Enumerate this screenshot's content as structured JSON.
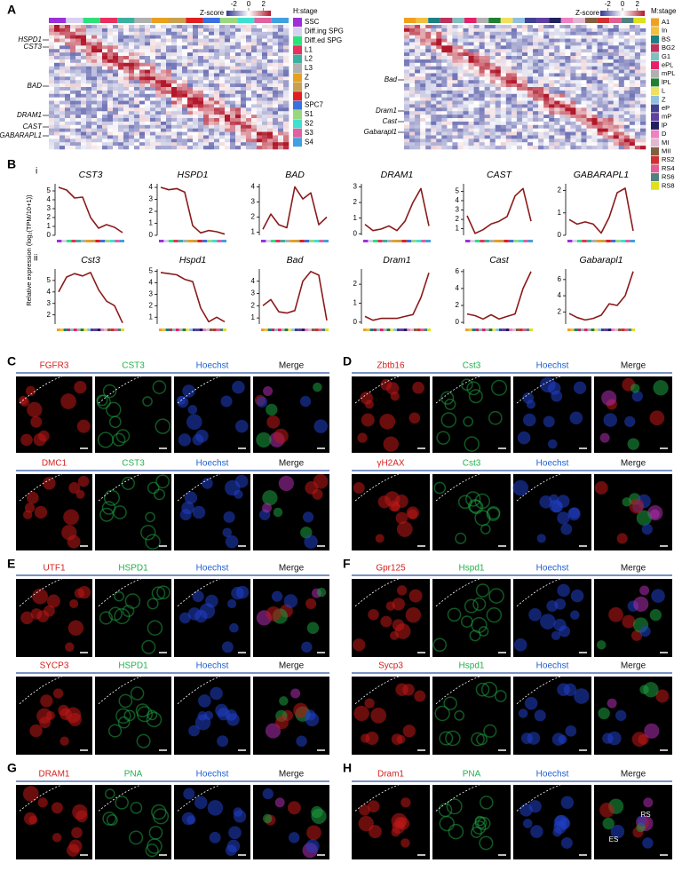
{
  "panel_labels": [
    "A",
    "B",
    "C",
    "D",
    "E",
    "F",
    "G",
    "H"
  ],
  "heatmaps": [
    {
      "colorbar_title": "Z-score",
      "colorbar_lim": [
        -3,
        3
      ],
      "colorbar_ticks": [
        -2,
        0,
        2
      ],
      "legend_title": "H:stage",
      "stages": [
        {
          "name": "SSC",
          "color": "#9b30d9"
        },
        {
          "name": "Diff.ing SPG",
          "color": "#d8d0f0"
        },
        {
          "name": "Diff.ed SPG",
          "color": "#2ee07a"
        },
        {
          "name": "L1",
          "color": "#e8305f"
        },
        {
          "name": "L2",
          "color": "#3cb0a0"
        },
        {
          "name": "L3",
          "color": "#b0b0b0"
        },
        {
          "name": "Z",
          "color": "#e8a020"
        },
        {
          "name": "P",
          "color": "#c8a050"
        },
        {
          "name": "D",
          "color": "#e02020"
        },
        {
          "name": "SPC7",
          "color": "#3a70e0"
        },
        {
          "name": "S1",
          "color": "#9ad880"
        },
        {
          "name": "S2",
          "color": "#40e0d0"
        },
        {
          "name": "S3",
          "color": "#e060a0"
        },
        {
          "name": "S4",
          "color": "#40a0e0"
        }
      ],
      "genes": [
        "HSPD1",
        "CST3",
        "BAD",
        "DRAM1",
        "CAST",
        "GABARAPL1"
      ]
    },
    {
      "colorbar_title": "Z-score",
      "colorbar_lim": [
        -3,
        3
      ],
      "colorbar_ticks": [
        -2,
        0,
        2
      ],
      "legend_title": "M:stage",
      "stages": [
        {
          "name": "A1",
          "color": "#f0a020"
        },
        {
          "name": "In",
          "color": "#f0c040"
        },
        {
          "name": "BS",
          "color": "#1a8080"
        },
        {
          "name": "BG2",
          "color": "#c0305a"
        },
        {
          "name": "G1",
          "color": "#80c0c0"
        },
        {
          "name": "ePL",
          "color": "#e8206a"
        },
        {
          "name": "mPL",
          "color": "#b0b0b0"
        },
        {
          "name": "lPL",
          "color": "#208030"
        },
        {
          "name": "L",
          "color": "#f0e060"
        },
        {
          "name": "Z",
          "color": "#90c0e0"
        },
        {
          "name": "eP",
          "color": "#404090"
        },
        {
          "name": "mP",
          "color": "#6040a0"
        },
        {
          "name": "lP",
          "color": "#202060"
        },
        {
          "name": "D",
          "color": "#f080c0"
        },
        {
          "name": "MI",
          "color": "#e0b8d0"
        },
        {
          "name": "MII",
          "color": "#806040"
        },
        {
          "name": "RS2",
          "color": "#d03030"
        },
        {
          "name": "RS4",
          "color": "#e06090"
        },
        {
          "name": "RS6",
          "color": "#508080"
        },
        {
          "name": "RS8",
          "color": "#e0e020"
        }
      ],
      "genes": [
        "Bad",
        "Dram1",
        "Cast",
        "Gabarapl1"
      ]
    }
  ],
  "row_labels": [
    "i",
    "ii"
  ],
  "y_axis_label": "Relative expression (log₂(TPM/10+1))",
  "chart_data": [
    {
      "type": "line",
      "title": "CST3",
      "categories": [
        null,
        null,
        null,
        null,
        null,
        null,
        null,
        null,
        null
      ],
      "color": "#8b1a1a",
      "values": [
        5.4,
        5.1,
        4.2,
        4.3,
        2.0,
        0.8,
        1.2,
        0.9,
        0.3
      ],
      "ylim": [
        0,
        5.8
      ],
      "yticks": [
        0,
        1,
        2,
        3,
        4,
        5
      ]
    },
    {
      "type": "line",
      "title": "HSPD1",
      "categories": [
        null,
        null,
        null,
        null,
        null,
        null,
        null,
        null,
        null
      ],
      "color": "#8b1a1a",
      "values": [
        4.0,
        3.8,
        3.9,
        3.6,
        0.8,
        0.2,
        0.4,
        0.3,
        0.1
      ],
      "ylim": [
        0,
        4.3
      ],
      "yticks": [
        0,
        1,
        2,
        3,
        4
      ]
    },
    {
      "type": "line",
      "title": "BAD",
      "categories": [
        null,
        null,
        null,
        null,
        null,
        null,
        null,
        null,
        null
      ],
      "color": "#8b1a1a",
      "values": [
        1.2,
        2.2,
        1.5,
        1.3,
        4.0,
        3.2,
        3.6,
        1.5,
        2.0
      ],
      "ylim": [
        0.8,
        4.2
      ],
      "yticks": [
        1,
        2,
        3,
        4
      ]
    },
    {
      "type": "line",
      "title": "DRAM1",
      "categories": [
        null,
        null,
        null,
        null,
        null,
        null,
        null,
        null,
        null
      ],
      "color": "#8b1a1a",
      "values": [
        0.6,
        0.2,
        0.3,
        0.5,
        0.2,
        0.8,
        2.0,
        2.9,
        0.5
      ],
      "ylim": [
        -0.1,
        3.2
      ],
      "yticks": [
        0,
        1,
        2,
        3
      ]
    },
    {
      "type": "line",
      "title": "CAST",
      "categories": [
        null,
        null,
        null,
        null,
        null,
        null,
        null,
        null,
        null
      ],
      "color": "#8b1a1a",
      "values": [
        2.4,
        0.5,
        0.9,
        1.5,
        1.8,
        2.3,
        4.5,
        5.3,
        1.8
      ],
      "ylim": [
        0.3,
        5.8
      ],
      "yticks": [
        1,
        2,
        3,
        4,
        5
      ]
    },
    {
      "type": "line",
      "title": "GABARAPL1",
      "categories": [
        null,
        null,
        null,
        null,
        null,
        null,
        null,
        null,
        null
      ],
      "color": "#8b1a1a",
      "values": [
        0.7,
        0.5,
        0.6,
        0.5,
        0.1,
        0.8,
        1.9,
        2.1,
        0.2
      ],
      "ylim": [
        0,
        2.3
      ],
      "yticks": [
        0,
        1,
        2
      ]
    },
    {
      "type": "line",
      "title": "Cst3",
      "categories": [
        null,
        null,
        null,
        null,
        null,
        null,
        null,
        null,
        null
      ],
      "color": "#8b1a1a",
      "values": [
        4.0,
        5.3,
        5.6,
        5.4,
        5.7,
        4.2,
        3.2,
        2.8,
        1.3
      ],
      "ylim": [
        1.2,
        6
      ],
      "yticks": [
        2,
        3,
        4,
        5
      ]
    },
    {
      "type": "line",
      "title": "Hspd1",
      "categories": [
        null,
        null,
        null,
        null,
        null,
        null,
        null,
        null,
        null
      ],
      "color": "#8b1a1a",
      "values": [
        4.9,
        4.8,
        4.7,
        4.3,
        4.1,
        1.8,
        0.6,
        1.0,
        0.6
      ],
      "ylim": [
        0.4,
        5.2
      ],
      "yticks": [
        1,
        2,
        3,
        4,
        5
      ]
    },
    {
      "type": "line",
      "title": "Bad",
      "categories": [
        null,
        null,
        null,
        null,
        null,
        null,
        null,
        null,
        null
      ],
      "color": "#8b1a1a",
      "values": [
        2.0,
        2.5,
        1.5,
        1.4,
        1.6,
        4.0,
        4.8,
        4.5,
        0.8
      ],
      "ylim": [
        0.5,
        5
      ],
      "yticks": [
        1,
        2,
        3,
        4
      ]
    },
    {
      "type": "line",
      "title": "Dram1",
      "categories": [
        null,
        null,
        null,
        null,
        null,
        null,
        null,
        null,
        null
      ],
      "color": "#8b1a1a",
      "values": [
        0.3,
        0.1,
        0.2,
        0.2,
        0.2,
        0.3,
        0.4,
        1.3,
        2.6
      ],
      "ylim": [
        -0.1,
        2.8
      ],
      "yticks": [
        0,
        1,
        2
      ]
    },
    {
      "type": "line",
      "title": "Cast",
      "categories": [
        null,
        null,
        null,
        null,
        null,
        null,
        null,
        null,
        null
      ],
      "color": "#8b1a1a",
      "values": [
        1.0,
        0.8,
        0.4,
        0.9,
        0.4,
        0.7,
        1.0,
        4.0,
        6.0
      ],
      "ylim": [
        -0.2,
        6.3
      ],
      "yticks": [
        0,
        2,
        4,
        6
      ]
    },
    {
      "type": "line",
      "title": "Gabarapl1",
      "categories": [
        null,
        null,
        null,
        null,
        null,
        null,
        null,
        null,
        null
      ],
      "color": "#8b1a1a",
      "values": [
        1.8,
        1.3,
        1.0,
        1.2,
        1.6,
        3.0,
        2.8,
        4.0,
        7.0
      ],
      "ylim": [
        0.5,
        7.3
      ],
      "yticks": [
        2,
        4,
        6
      ]
    }
  ],
  "imaging_panels": [
    {
      "rows": [
        [
          "FGFR3",
          "CST3",
          "Hoechst",
          "Merge"
        ],
        [
          "DMC1",
          "CST3",
          "Hoechst",
          "Merge"
        ]
      ]
    },
    {
      "rows": [
        [
          "Zbtb16",
          "Cst3",
          "Hoechst",
          "Merge"
        ],
        [
          "γH2AX",
          "Cst3",
          "Hoechst",
          "Merge"
        ]
      ]
    },
    {
      "rows": [
        [
          "UTF1",
          "HSPD1",
          "Hoechst",
          "Merge"
        ],
        [
          "SYCP3",
          "HSPD1",
          "Hoechst",
          "Merge"
        ]
      ]
    },
    {
      "rows": [
        [
          "Gpr125",
          "Hspd1",
          "Hoechst",
          "Merge"
        ],
        [
          "Sycp3",
          "Hspd1",
          "Hoechst",
          "Merge"
        ]
      ]
    },
    {
      "rows": [
        [
          "DRAM1",
          "PNA",
          "Hoechst",
          "Merge"
        ]
      ]
    },
    {
      "rows": [
        [
          "Dram1",
          "PNA",
          "Hoechst",
          "Merge"
        ]
      ],
      "annotations": [
        "RS",
        "ES"
      ]
    }
  ]
}
